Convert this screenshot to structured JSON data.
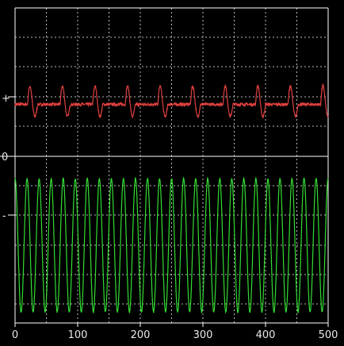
{
  "chart_data": {
    "type": "line",
    "title": "",
    "xlabel": "",
    "ylabel": "",
    "xlim": [
      0,
      500
    ],
    "x_ticks": [
      0,
      100,
      200,
      300,
      400,
      500
    ],
    "x_tick_labels": [
      "0",
      "100",
      "200",
      "300",
      "400",
      "500"
    ],
    "y_side_labels": {
      "plus": "+",
      "zero": "0",
      "minus": "-"
    },
    "grid": true,
    "background": "#000000",
    "grid_color": "#bdbdbd",
    "zero_line_color": "#ffffff",
    "series": [
      {
        "color": "#e04040",
        "kind": "pulse-train",
        "baseline_level": 0.35,
        "pulse_amplitude": 0.15,
        "pulse_period": 52,
        "first_pulse_x": 20,
        "noise": 0.01
      },
      {
        "color": "#33dd33",
        "kind": "sine",
        "center_level": -0.6,
        "amplitude": 0.45,
        "cycles": 26,
        "noise": 0.005
      }
    ]
  }
}
